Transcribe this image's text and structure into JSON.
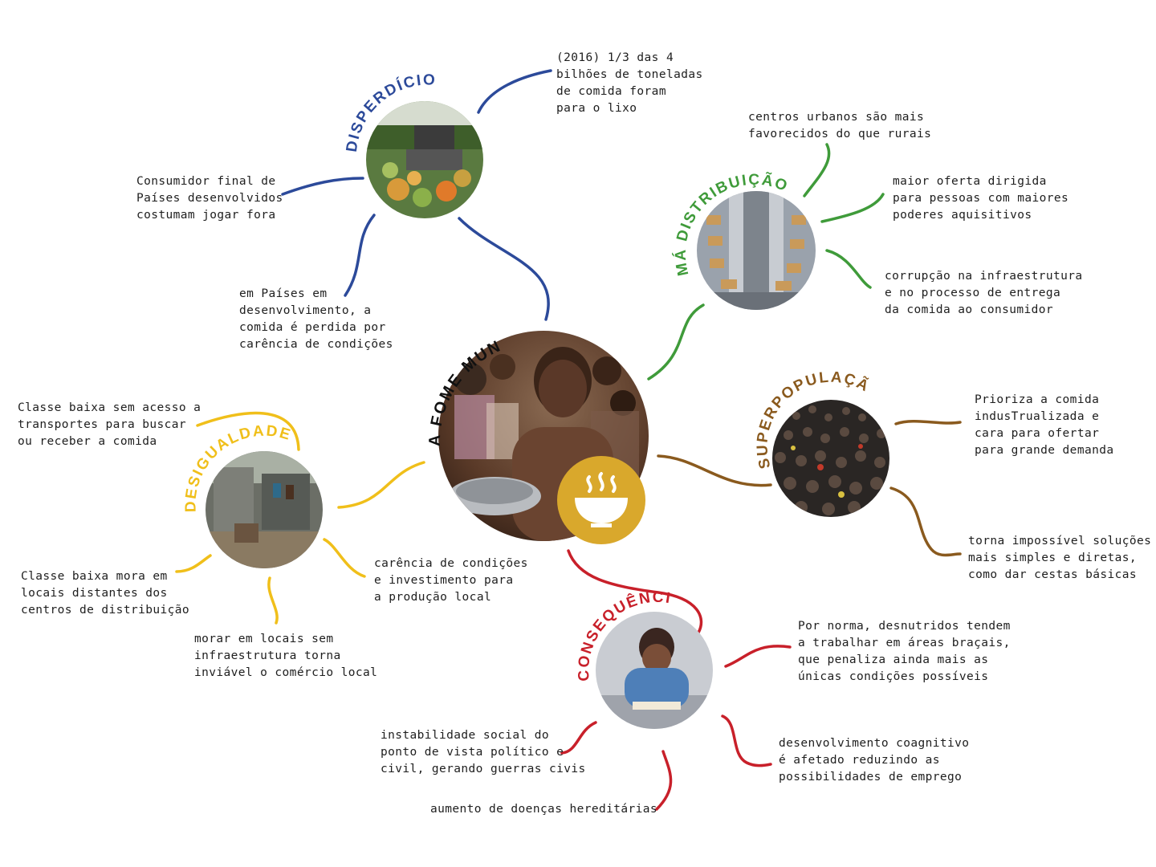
{
  "colors": {
    "disperdicio": "#2c4a9a",
    "ma_distribuicao": "#3f9b3a",
    "superpopulacao": "#8a5a1e",
    "desigualdade": "#f0bf1a",
    "consequencias": "#c8202a",
    "center_title": "#111111",
    "bowl_badge": "#d9a82c"
  },
  "center": {
    "title": "A FOME MUNDIAL",
    "icon": "soup-bowl-icon"
  },
  "topics": {
    "disperdicio": {
      "title": "DISPERDÍCIO",
      "notes": [
        "(2016) 1/3 das 4\nbilhões de toneladas\nde comida foram\npara o lixo",
        "Consumidor final de\nPaíses desenvolvidos\ncostumam jogar fora",
        "em Países em\ndesenvolvimento, a\ncomida é perdida por\ncarência de condições"
      ]
    },
    "ma_distribuicao": {
      "title": "MÁ DISTRIBUIÇÃO",
      "notes": [
        "centros urbanos são mais\nfavorecidos do que rurais",
        "maior oferta dirigida\npara pessoas com maiores\npoderes aquisitivos",
        "corrupção na infraestrutura\ne no processo de entrega\nda comida ao consumidor"
      ]
    },
    "superpopulacao": {
      "title": "SUPERPOPULAÇÃO",
      "notes": [
        "Prioriza a comida\nindusTrualizada e\ncara para ofertar\npara grande demanda",
        "torna impossível soluções\nmais simples e diretas,\ncomo dar cestas básicas"
      ]
    },
    "desigualdade": {
      "title": "DESIGUALDADE",
      "notes": [
        "Classe baixa sem acesso a\ntransportes para buscar\nou receber a comida",
        "Classe baixa mora em\nlocais distantes dos\ncentros de distribuição",
        "morar em locais sem\ninfraestrutura torna\ninviável o comércio local",
        "carência de condições\ne investimento para\na produção local"
      ]
    },
    "consequencias": {
      "title": "CONSEQUÊNCIAS",
      "notes": [
        "Por norma, desnutridos tendem\na trabalhar em áreas braçais,\nque penaliza ainda mais as\núnicas condições possíveis",
        "instabilidade social do\nponto de vista político e\ncivil, gerando guerras civis",
        "desenvolvimento coagnitivo\né afetado reduzindo as\npossibilidades de emprego",
        "aumento de doenças hereditárias"
      ]
    }
  }
}
